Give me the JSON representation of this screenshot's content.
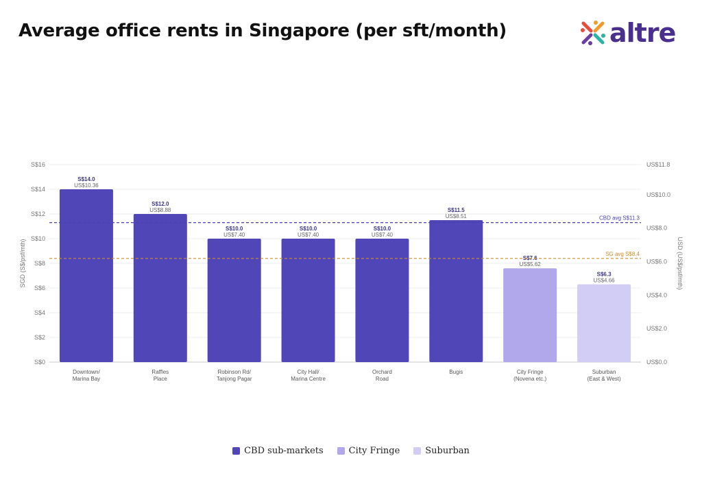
{
  "title": "Average office rents in Singapore (per sft/month)",
  "logo": {
    "text": "altre",
    "icon": "altre-logo-icon"
  },
  "colors": {
    "cbd": "#5146b8",
    "fringe": "#b0a8ea",
    "suburban": "#d2cdf4",
    "cbd_line": "#4a3fb5",
    "sg_line": "#d08a2a"
  },
  "legend": [
    {
      "label": "CBD sub-markets",
      "group": "cbd"
    },
    {
      "label": "City Fringe",
      "group": "fringe"
    },
    {
      "label": "Suburban",
      "group": "suburban"
    }
  ],
  "chart_data": {
    "type": "bar",
    "ylabel": "SGD (S$/psf/mth)",
    "ylabel_right": "USD (US$/psf/mth)",
    "ylim": [
      0,
      16
    ],
    "y_ticks": [
      0,
      2,
      4,
      6,
      8,
      10,
      12,
      14,
      16
    ],
    "y_tick_labels": [
      "S$0",
      "S$2",
      "S$4",
      "S$6",
      "S$8",
      "S$10",
      "S$12",
      "S$14",
      "S$16"
    ],
    "y2lim": [
      0,
      11.8
    ],
    "y2_ticks": [
      0,
      2,
      4,
      6,
      8,
      10,
      11.8
    ],
    "y2_tick_labels": [
      "US$0.0",
      "US$2.0",
      "US$4.0",
      "US$6.0",
      "US$8.0",
      "US$10.0",
      "US$11.8"
    ],
    "grid": true,
    "categories": [
      [
        "Downtown/",
        "Marina Bay"
      ],
      [
        "Raffles",
        "Place"
      ],
      [
        "Robinson Rd/",
        "Tanjong Pagar"
      ],
      [
        "City Hall/",
        "Marina Centre"
      ],
      [
        "Orchard",
        "Road"
      ],
      [
        "Bugis"
      ],
      [
        "City Fringe",
        "(Novena etc.)"
      ],
      [
        "Suburban",
        "(East & West)"
      ]
    ],
    "values": [
      14.0,
      12.0,
      10.0,
      10.0,
      10.0,
      11.5,
      7.6,
      6.3
    ],
    "value_labels": [
      "S$14.0",
      "S$12.0",
      "S$10.0",
      "S$10.0",
      "S$10.0",
      "S$11.5",
      "S$7.6",
      "S$6.3"
    ],
    "usd_values": [
      10.36,
      8.88,
      7.4,
      7.4,
      7.4,
      8.51,
      5.62,
      4.66
    ],
    "usd_labels": [
      "US$10.36",
      "US$8.88",
      "US$7.40",
      "US$7.40",
      "US$7.40",
      "US$8.51",
      "US$5.62",
      "US$4.66"
    ],
    "groups": [
      "cbd",
      "cbd",
      "cbd",
      "cbd",
      "cbd",
      "cbd",
      "fringe",
      "suburban"
    ],
    "reference_lines": [
      {
        "label": "CBD avg S$11.3",
        "value": 11.3,
        "color_key": "cbd_line"
      },
      {
        "label": "SG avg S$8.4",
        "value": 8.4,
        "color_key": "sg_line"
      }
    ]
  }
}
